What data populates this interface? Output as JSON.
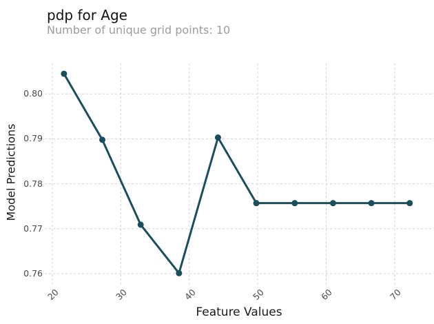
{
  "header": {
    "title": "pdp for Age",
    "subtitle": "Number of unique grid points: 10"
  },
  "chart_data": {
    "type": "line",
    "title": "pdp for Age",
    "subtitle": "Number of unique grid points: 10",
    "xlabel": "Feature Values",
    "ylabel": "Model Predictions",
    "x": [
      21.7,
      27.3,
      32.9,
      38.5,
      44.2,
      49.8,
      55.4,
      61.0,
      66.6,
      72.2
    ],
    "y": [
      0.8045,
      0.7898,
      0.7709,
      0.7601,
      0.7903,
      0.7757,
      0.7757,
      0.7757,
      0.7757,
      0.7757
    ],
    "num_grid_points": 10,
    "xticks": [
      20,
      30,
      40,
      50,
      60,
      70
    ],
    "xtick_labels": [
      "20",
      "30",
      "40",
      "50",
      "60",
      "70"
    ],
    "yticks": [
      0.76,
      0.77,
      0.78,
      0.79,
      0.8
    ],
    "ytick_labels": [
      "0.76",
      "0.77",
      "0.78",
      "0.79",
      "0.80"
    ],
    "xlim": [
      19.5,
      75.75
    ],
    "ylim": [
      0.7583,
      0.8068
    ],
    "grid": "dashed",
    "legend_position": "none",
    "colors": {
      "line": "#1A4E5D",
      "marker": "#1A4E5D",
      "grid": "#d2d2d2",
      "title": "#111111",
      "subtitle": "#9c9c9c",
      "tick_label": "#4a4a4a",
      "axis_title": "#1a1a1a",
      "background": "#ffffff"
    },
    "line_width": 3,
    "marker_radius": 4.5
  }
}
